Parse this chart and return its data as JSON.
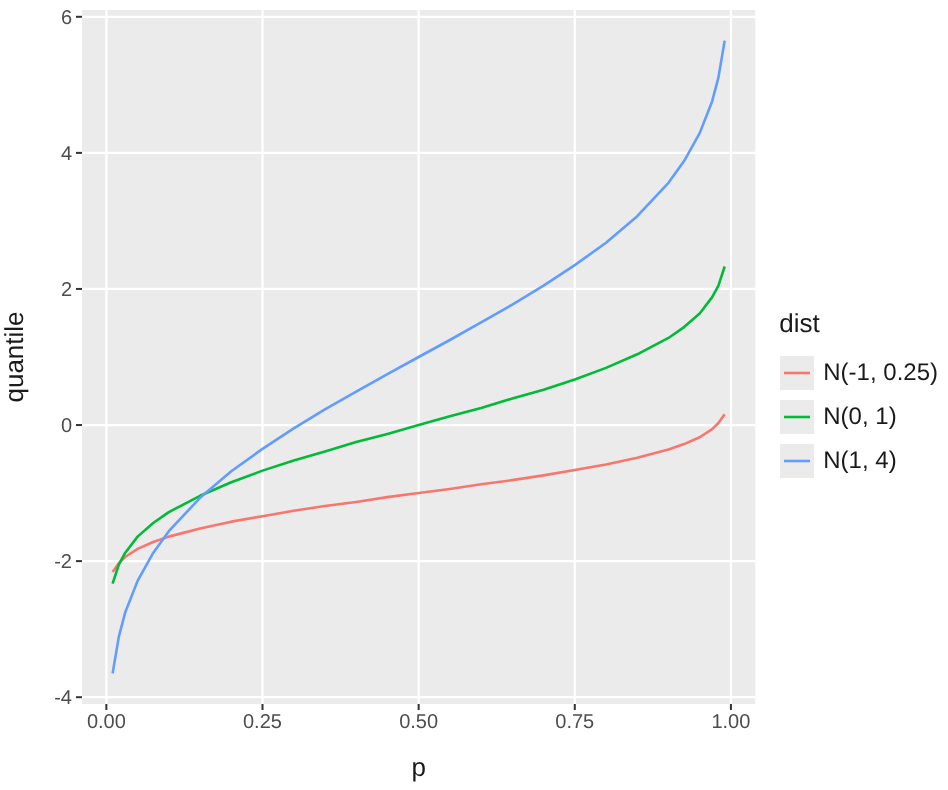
{
  "chart_data": {
    "type": "line",
    "xlabel": "p",
    "ylabel": "quantile",
    "legend_title": "dist",
    "legend": "right",
    "grid": true,
    "marker": "none",
    "line_style": "solid",
    "x": [
      0.01,
      0.02,
      0.03,
      0.05,
      0.075,
      0.1,
      0.15,
      0.2,
      0.25,
      0.3,
      0.35,
      0.4,
      0.45,
      0.5,
      0.55,
      0.6,
      0.65,
      0.7,
      0.75,
      0.8,
      0.85,
      0.9,
      0.925,
      0.95,
      0.97,
      0.98,
      0.99
    ],
    "xlim": [
      -0.039,
      1.039
    ],
    "xticks": [
      {
        "value": 0,
        "label": "0.00"
      },
      {
        "value": 0.25,
        "label": "0.25"
      },
      {
        "value": 0.5,
        "label": "0.50"
      },
      {
        "value": 0.75,
        "label": "0.75"
      },
      {
        "value": 1,
        "label": "1.00"
      }
    ],
    "ylim": [
      -4.1,
      6.1
    ],
    "yticks": [
      -4,
      -2,
      0,
      2,
      4,
      6
    ],
    "series": [
      {
        "name": "N(-1, 0.25)",
        "color": "#f8766d",
        "values": [
          -2.16,
          -2.03,
          -1.94,
          -1.82,
          -1.72,
          -1.64,
          -1.52,
          -1.42,
          -1.34,
          -1.26,
          -1.19,
          -1.13,
          -1.06,
          -1,
          -0.94,
          -0.87,
          -0.81,
          -0.74,
          -0.66,
          -0.58,
          -0.48,
          -0.36,
          -0.28,
          -0.18,
          -0.06,
          0.03,
          0.16
        ]
      },
      {
        "name": "N(0, 1)",
        "color": "#00ba38",
        "values": [
          -2.33,
          -2.05,
          -1.88,
          -1.64,
          -1.44,
          -1.28,
          -1.04,
          -0.84,
          -0.67,
          -0.52,
          -0.39,
          -0.25,
          -0.13,
          0,
          0.13,
          0.25,
          0.39,
          0.52,
          0.67,
          0.84,
          1.04,
          1.28,
          1.44,
          1.64,
          1.88,
          2.05,
          2.33
        ]
      },
      {
        "name": "N(1, 4)",
        "color": "#619cff",
        "values": [
          -3.65,
          -3.11,
          -2.76,
          -2.29,
          -1.88,
          -1.56,
          -1.07,
          -0.68,
          -0.35,
          -0.05,
          0.23,
          0.49,
          0.75,
          1,
          1.25,
          1.51,
          1.77,
          2.05,
          2.35,
          2.68,
          3.07,
          3.56,
          3.88,
          4.29,
          4.76,
          5.11,
          5.65
        ]
      }
    ]
  }
}
